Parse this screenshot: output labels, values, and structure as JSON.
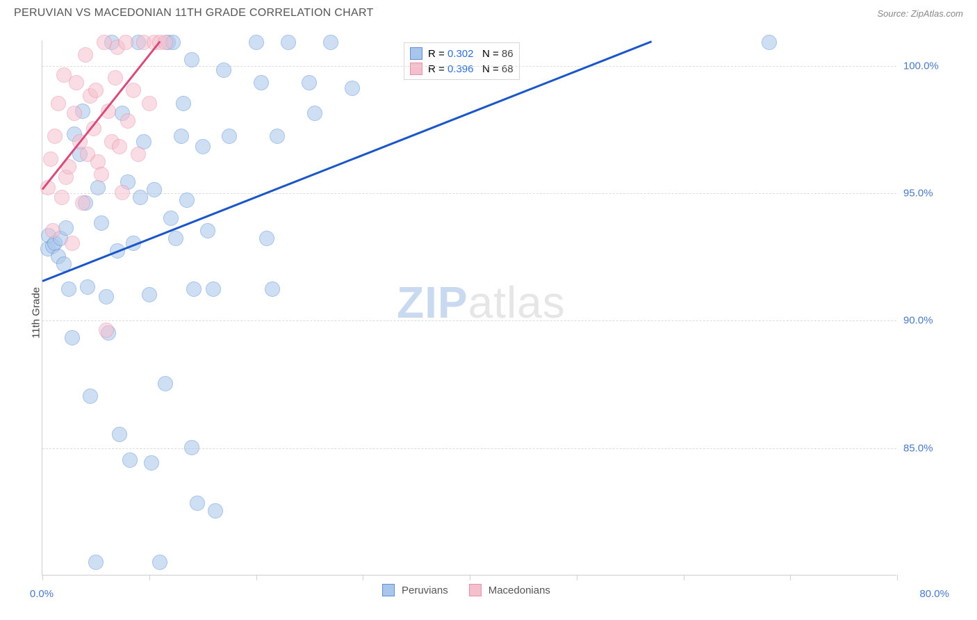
{
  "header": {
    "title": "PERUVIAN VS MACEDONIAN 11TH GRADE CORRELATION CHART",
    "source": "Source: ZipAtlas.com"
  },
  "chart": {
    "type": "scatter",
    "ylabel": "11th Grade",
    "background_color": "#ffffff",
    "grid_color": "#dcdcdc",
    "axis_color": "#cfcfcf",
    "xlim": [
      0,
      80
    ],
    "ylim": [
      80,
      101
    ],
    "yticks": [
      {
        "v": 100.0,
        "label": "100.0%"
      },
      {
        "v": 95.0,
        "label": "95.0%"
      },
      {
        "v": 90.0,
        "label": "90.0%"
      },
      {
        "v": 85.0,
        "label": "85.0%"
      }
    ],
    "xticks_major": [
      0,
      10,
      20,
      30,
      40,
      50,
      60,
      70,
      80
    ],
    "xtick_labels": {
      "left": "0.0%",
      "right": "80.0%"
    },
    "watermark": {
      "zip": "ZIP",
      "atlas": "atlas"
    },
    "marker_radius": 11,
    "marker_opacity": 0.55,
    "trend_width": 3,
    "series": [
      {
        "name": "Peruvians",
        "fill": "#a9c6ea",
        "stroke": "#5b8fd6",
        "trend_color": "#1a56c7",
        "R": "0.302",
        "N": "86",
        "trend": {
          "x1": 0,
          "y1": 91.6,
          "x2": 57,
          "y2": 101.0
        },
        "points": [
          [
            0.5,
            92.8
          ],
          [
            0.6,
            93.3
          ],
          [
            1.0,
            92.9
          ],
          [
            1.2,
            93.0
          ],
          [
            1.5,
            92.5
          ],
          [
            1.7,
            93.2
          ],
          [
            2.0,
            92.2
          ],
          [
            2.2,
            93.6
          ],
          [
            2.5,
            91.2
          ],
          [
            2.8,
            89.3
          ],
          [
            3.0,
            97.3
          ],
          [
            3.5,
            96.5
          ],
          [
            3.8,
            98.2
          ],
          [
            4.0,
            94.6
          ],
          [
            4.2,
            91.3
          ],
          [
            4.5,
            87.0
          ],
          [
            5.0,
            80.5
          ],
          [
            5.2,
            95.2
          ],
          [
            5.5,
            93.8
          ],
          [
            6.0,
            90.9
          ],
          [
            6.2,
            89.5
          ],
          [
            6.5,
            100.9
          ],
          [
            7.0,
            92.7
          ],
          [
            7.2,
            85.5
          ],
          [
            7.5,
            98.1
          ],
          [
            8.0,
            95.4
          ],
          [
            8.2,
            84.5
          ],
          [
            8.5,
            93.0
          ],
          [
            9.0,
            100.9
          ],
          [
            9.2,
            94.8
          ],
          [
            9.5,
            97.0
          ],
          [
            10.0,
            91.0
          ],
          [
            10.2,
            84.4
          ],
          [
            10.5,
            95.1
          ],
          [
            11.0,
            80.5
          ],
          [
            11.5,
            87.5
          ],
          [
            11.8,
            100.9
          ],
          [
            12.0,
            94.0
          ],
          [
            12.2,
            100.9
          ],
          [
            12.5,
            93.2
          ],
          [
            13.0,
            97.2
          ],
          [
            13.2,
            98.5
          ],
          [
            13.5,
            94.7
          ],
          [
            14.0,
            85.0
          ],
          [
            14.2,
            91.2
          ],
          [
            14.0,
            100.2
          ],
          [
            14.5,
            82.8
          ],
          [
            15.0,
            96.8
          ],
          [
            15.5,
            93.5
          ],
          [
            16.0,
            91.2
          ],
          [
            16.2,
            82.5
          ],
          [
            17.0,
            99.8
          ],
          [
            17.5,
            97.2
          ],
          [
            20.0,
            100.9
          ],
          [
            20.5,
            99.3
          ],
          [
            21.0,
            93.2
          ],
          [
            21.5,
            91.2
          ],
          [
            22.0,
            97.2
          ],
          [
            23.0,
            100.9
          ],
          [
            25.0,
            99.3
          ],
          [
            25.5,
            98.1
          ],
          [
            27.0,
            100.9
          ],
          [
            29.0,
            99.1
          ],
          [
            68.0,
            100.9
          ]
        ]
      },
      {
        "name": "Macedonians",
        "fill": "#f5c0ce",
        "stroke": "#e98fa8",
        "trend_color": "#d84b7b",
        "R": "0.396",
        "N": "68",
        "trend": {
          "x1": 0,
          "y1": 95.2,
          "x2": 11.0,
          "y2": 101.0
        },
        "points": [
          [
            0.5,
            95.2
          ],
          [
            0.8,
            96.3
          ],
          [
            1.0,
            93.5
          ],
          [
            1.2,
            97.2
          ],
          [
            1.5,
            98.5
          ],
          [
            1.8,
            94.8
          ],
          [
            2.0,
            99.6
          ],
          [
            2.2,
            95.6
          ],
          [
            2.5,
            96.0
          ],
          [
            2.8,
            93.0
          ],
          [
            3.0,
            98.1
          ],
          [
            3.2,
            99.3
          ],
          [
            3.5,
            97.0
          ],
          [
            3.8,
            94.6
          ],
          [
            4.0,
            100.4
          ],
          [
            4.2,
            96.5
          ],
          [
            4.5,
            98.8
          ],
          [
            4.8,
            97.5
          ],
          [
            5.0,
            99.0
          ],
          [
            5.2,
            96.2
          ],
          [
            5.5,
            95.7
          ],
          [
            5.8,
            100.9
          ],
          [
            6.0,
            89.6
          ],
          [
            6.2,
            98.2
          ],
          [
            6.5,
            97.0
          ],
          [
            6.8,
            99.5
          ],
          [
            7.0,
            100.7
          ],
          [
            7.2,
            96.8
          ],
          [
            7.5,
            95.0
          ],
          [
            7.8,
            100.9
          ],
          [
            8.0,
            97.8
          ],
          [
            8.5,
            99.0
          ],
          [
            9.0,
            96.5
          ],
          [
            9.5,
            100.9
          ],
          [
            10.0,
            98.5
          ],
          [
            10.5,
            100.9
          ],
          [
            11.0,
            100.9
          ],
          [
            11.5,
            100.9
          ]
        ]
      }
    ],
    "legend_bottom": [
      {
        "label": "Peruvians",
        "fill": "#a9c6ea",
        "stroke": "#5b8fd6"
      },
      {
        "label": "Macedonians",
        "fill": "#f5c0ce",
        "stroke": "#e98fa8"
      }
    ]
  }
}
